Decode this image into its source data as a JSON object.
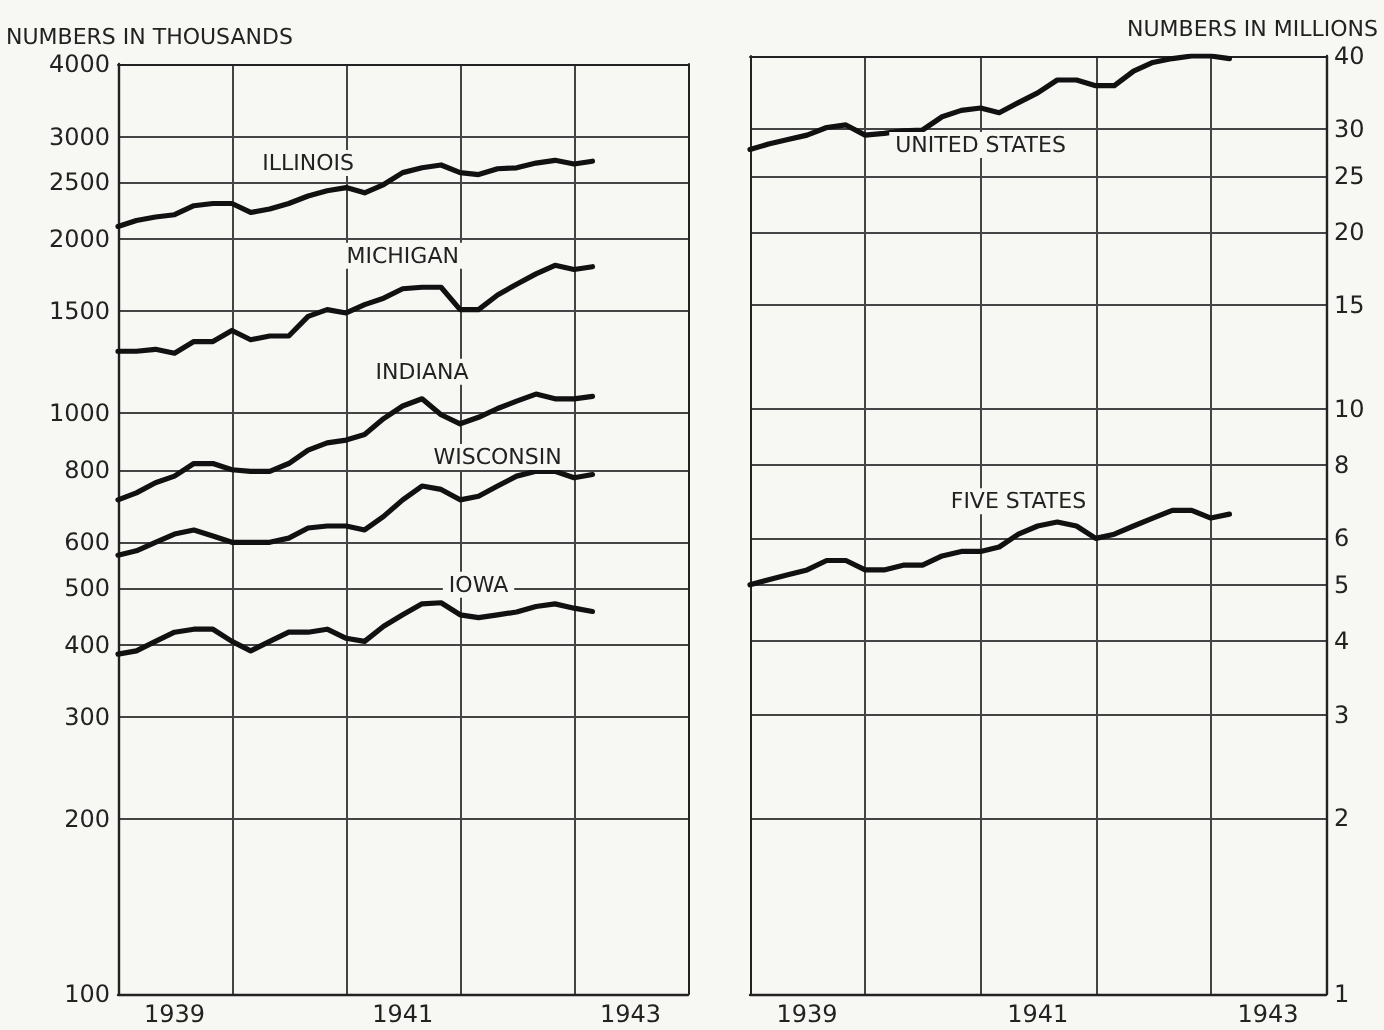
{
  "chart_data": [
    {
      "type": "line",
      "ylabel": "NUMBERS IN THOUSANDS",
      "log": true,
      "grid": true,
      "legend": false,
      "marker": "none",
      "line_style": "solid",
      "x": [
        "1939-01",
        "1939-03",
        "1939-05",
        "1939-07",
        "1939-09",
        "1939-11",
        "1940-01",
        "1940-03",
        "1940-05",
        "1940-07",
        "1940-09",
        "1940-11",
        "1941-01",
        "1941-03",
        "1941-05",
        "1941-07",
        "1941-09",
        "1941-11",
        "1942-01",
        "1942-03",
        "1942-05",
        "1942-07",
        "1942-09",
        "1942-11",
        "1943-01",
        "1943-03"
      ],
      "xlim": [
        "1939",
        "1944"
      ],
      "xticks": [
        {
          "value": "1939-07",
          "label": "1939"
        },
        {
          "value": "1940",
          "label": null
        },
        {
          "value": "1941",
          "label": null
        },
        {
          "value": "1941-07",
          "label": "1941"
        },
        {
          "value": "1942",
          "label": null
        },
        {
          "value": "1943",
          "label": null
        },
        {
          "value": "1943-07",
          "label": "1943"
        }
      ],
      "ylim": [
        100,
        4000
      ],
      "yticks": [
        100,
        200,
        300,
        400,
        500,
        600,
        800,
        1000,
        1500,
        2000,
        2500,
        3000,
        4000
      ],
      "series": [
        {
          "name": "ILLINOIS",
          "color": "#111111",
          "values": [
            2100,
            2150,
            2180,
            2200,
            2280,
            2300,
            2300,
            2220,
            2250,
            2300,
            2370,
            2420,
            2450,
            2400,
            2480,
            2600,
            2650,
            2680,
            2600,
            2580,
            2640,
            2650,
            2700,
            2730,
            2690,
            2720
          ]
        },
        {
          "name": "MICHIGAN",
          "color": "#111111",
          "values": [
            1280,
            1280,
            1290,
            1270,
            1330,
            1330,
            1390,
            1340,
            1360,
            1360,
            1470,
            1510,
            1490,
            1540,
            1580,
            1640,
            1650,
            1650,
            1510,
            1510,
            1600,
            1670,
            1740,
            1800,
            1770,
            1790
          ]
        },
        {
          "name": "INDIANA",
          "color": "#111111",
          "values": [
            710,
            730,
            760,
            780,
            820,
            820,
            800,
            795,
            795,
            820,
            865,
            890,
            900,
            920,
            980,
            1030,
            1060,
            995,
            960,
            985,
            1020,
            1050,
            1080,
            1060,
            1060,
            1070
          ]
        },
        {
          "name": "WISCONSIN",
          "color": "#111111",
          "values": [
            570,
            580,
            600,
            620,
            630,
            615,
            600,
            600,
            600,
            610,
            635,
            640,
            640,
            630,
            665,
            710,
            750,
            740,
            710,
            720,
            750,
            780,
            795,
            795,
            775,
            785
          ]
        },
        {
          "name": "IOWA",
          "color": "#111111",
          "values": [
            385,
            390,
            405,
            420,
            425,
            425,
            405,
            390,
            405,
            420,
            420,
            425,
            410,
            405,
            430,
            450,
            470,
            472,
            450,
            445,
            450,
            455,
            465,
            470,
            462,
            456
          ]
        }
      ]
    },
    {
      "type": "line",
      "ylabel": "NUMBERS IN MILLIONS",
      "log": true,
      "grid": true,
      "legend": false,
      "marker": "none",
      "line_style": "solid",
      "x": [
        "1939-01",
        "1939-03",
        "1939-05",
        "1939-07",
        "1939-09",
        "1939-11",
        "1940-01",
        "1940-03",
        "1940-05",
        "1940-07",
        "1940-09",
        "1940-11",
        "1941-01",
        "1941-03",
        "1941-05",
        "1941-07",
        "1941-09",
        "1941-11",
        "1942-01",
        "1942-03",
        "1942-05",
        "1942-07",
        "1942-09",
        "1942-11",
        "1943-01",
        "1943-03"
      ],
      "xlim": [
        "1939",
        "1944"
      ],
      "xticks": [
        {
          "value": "1939-07",
          "label": "1939"
        },
        {
          "value": "1940",
          "label": null
        },
        {
          "value": "1941",
          "label": null
        },
        {
          "value": "1941-07",
          "label": "1941"
        },
        {
          "value": "1942",
          "label": null
        },
        {
          "value": "1943",
          "label": null
        },
        {
          "value": "1943-07",
          "label": "1943"
        }
      ],
      "ylim": [
        1,
        40
      ],
      "yticks": [
        1,
        2,
        3,
        4,
        5,
        6,
        8,
        10,
        15,
        20,
        25,
        30,
        40
      ],
      "series": [
        {
          "name": "UNITED STATES",
          "color": "#111111",
          "values": [
            27.7,
            28.3,
            28.8,
            29.3,
            30.2,
            30.5,
            29.3,
            29.5,
            29.8,
            29.9,
            31.5,
            32.3,
            32.6,
            32.0,
            33.3,
            34.6,
            36.4,
            36.4,
            35.6,
            35.6,
            37.7,
            39.0,
            39.6,
            40.0,
            40.0,
            39.6
          ]
        },
        {
          "name": "FIVE STATES",
          "color": "#111111",
          "values": [
            5.0,
            5.1,
            5.2,
            5.3,
            5.5,
            5.5,
            5.3,
            5.3,
            5.4,
            5.4,
            5.6,
            5.7,
            5.7,
            5.8,
            6.1,
            6.3,
            6.4,
            6.3,
            6.0,
            6.1,
            6.3,
            6.5,
            6.7,
            6.7,
            6.5,
            6.6
          ]
        }
      ]
    }
  ]
}
